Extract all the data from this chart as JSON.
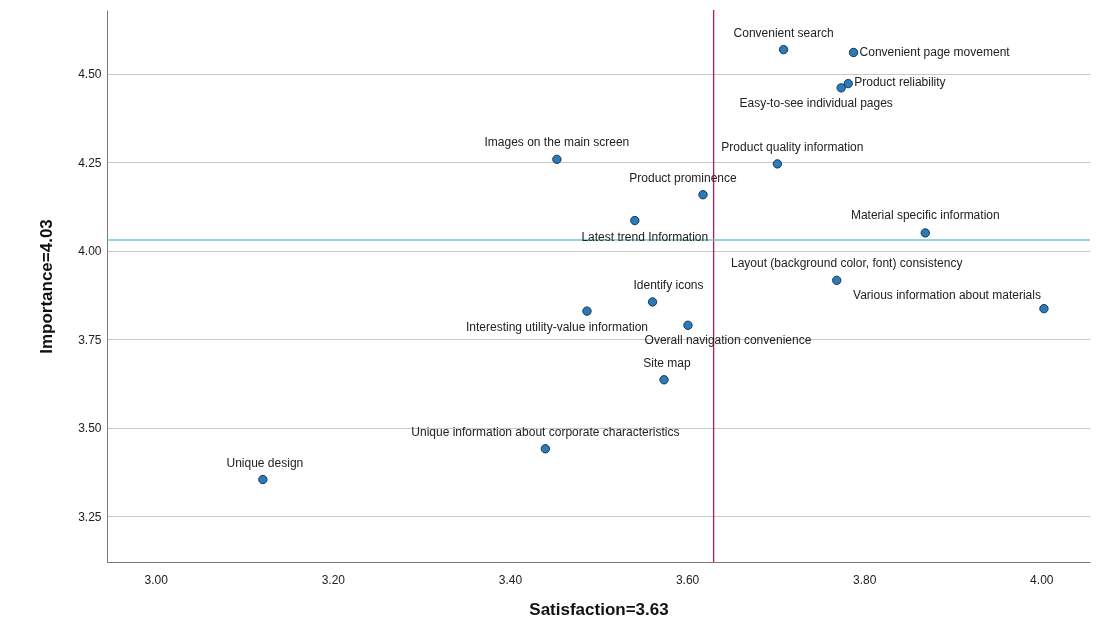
{
  "chart_data": {
    "type": "scatter",
    "xlabel": "Satisfaction=3.63",
    "ylabel": "Importance=4.03",
    "x": [
      3.709,
      3.788,
      3.782,
      3.774,
      3.453,
      3.702,
      3.618,
      3.541,
      3.869,
      3.769,
      4.003,
      3.561,
      3.487,
      3.601,
      3.574,
      3.44,
      3.121
    ],
    "series": [
      {
        "color": "#2b7bba",
        "values": [
          4.568,
          4.56,
          4.472,
          4.46,
          4.258,
          4.245,
          4.158,
          4.085,
          4.05,
          3.916,
          3.836,
          3.855,
          3.829,
          3.789,
          3.635,
          3.44,
          3.353
        ]
      }
    ],
    "annotations": [
      {
        "text": "Convenient search",
        "x": 3.709,
        "y": 4.568
      },
      {
        "text": "Convenient page movement",
        "x": 3.788,
        "y": 4.56
      },
      {
        "text": "Product reliability",
        "x": 3.782,
        "y": 4.472
      },
      {
        "text": "Easy-to-see individual pages",
        "x": 3.774,
        "y": 4.46
      },
      {
        "text": "Images on the main screen",
        "x": 3.453,
        "y": 4.258
      },
      {
        "text": "Product quality information",
        "x": 3.702,
        "y": 4.245
      },
      {
        "text": "Product prominence",
        "x": 3.618,
        "y": 4.158
      },
      {
        "text": "Latest trend Information",
        "x": 3.541,
        "y": 4.085
      },
      {
        "text": "Material specific information",
        "x": 3.869,
        "y": 4.05
      },
      {
        "text": "Layout (background color, font) consistency",
        "x": 3.769,
        "y": 3.916
      },
      {
        "text": "Various information about materials",
        "x": 4.003,
        "y": 3.836
      },
      {
        "text": "Identify icons",
        "x": 3.561,
        "y": 3.855
      },
      {
        "text": "Interesting utility-value information",
        "x": 3.487,
        "y": 3.829
      },
      {
        "text": "Overall navigation convenience",
        "x": 3.601,
        "y": 3.789
      },
      {
        "text": "Site map",
        "x": 3.574,
        "y": 3.635
      },
      {
        "text": "Unique information about corporate characteristics",
        "x": 3.44,
        "y": 3.44
      },
      {
        "text": "Unique design",
        "x": 3.121,
        "y": 3.353
      }
    ],
    "xlim": [
      2.945,
      4.055
    ],
    "ylim": [
      3.12,
      4.68
    ],
    "xticks": [
      {
        "value": 3,
        "label": "3.00"
      },
      {
        "value": 3.2,
        "label": "3.20"
      },
      {
        "value": 3.4,
        "label": "3.40"
      },
      {
        "value": 3.6,
        "label": "3.60"
      },
      {
        "value": 3.8,
        "label": "3.80"
      },
      {
        "value": 4,
        "label": "4.00"
      }
    ],
    "yticks": [
      {
        "value": 3.25,
        "label": "3.25"
      },
      {
        "value": 3.5,
        "label": "3.50"
      },
      {
        "value": 3.75,
        "label": "3.75"
      },
      {
        "value": 4,
        "label": "4.00"
      },
      {
        "value": 4.25,
        "label": "4.25"
      },
      {
        "value": 4.5,
        "label": "4.50"
      }
    ],
    "ref_lines": [
      {
        "axis": "x",
        "value": 3.63,
        "color": "#c2185b"
      },
      {
        "axis": "y",
        "value": 4.03,
        "color": "#6cc9cf"
      }
    ],
    "grid": "y",
    "marker": "circle"
  }
}
